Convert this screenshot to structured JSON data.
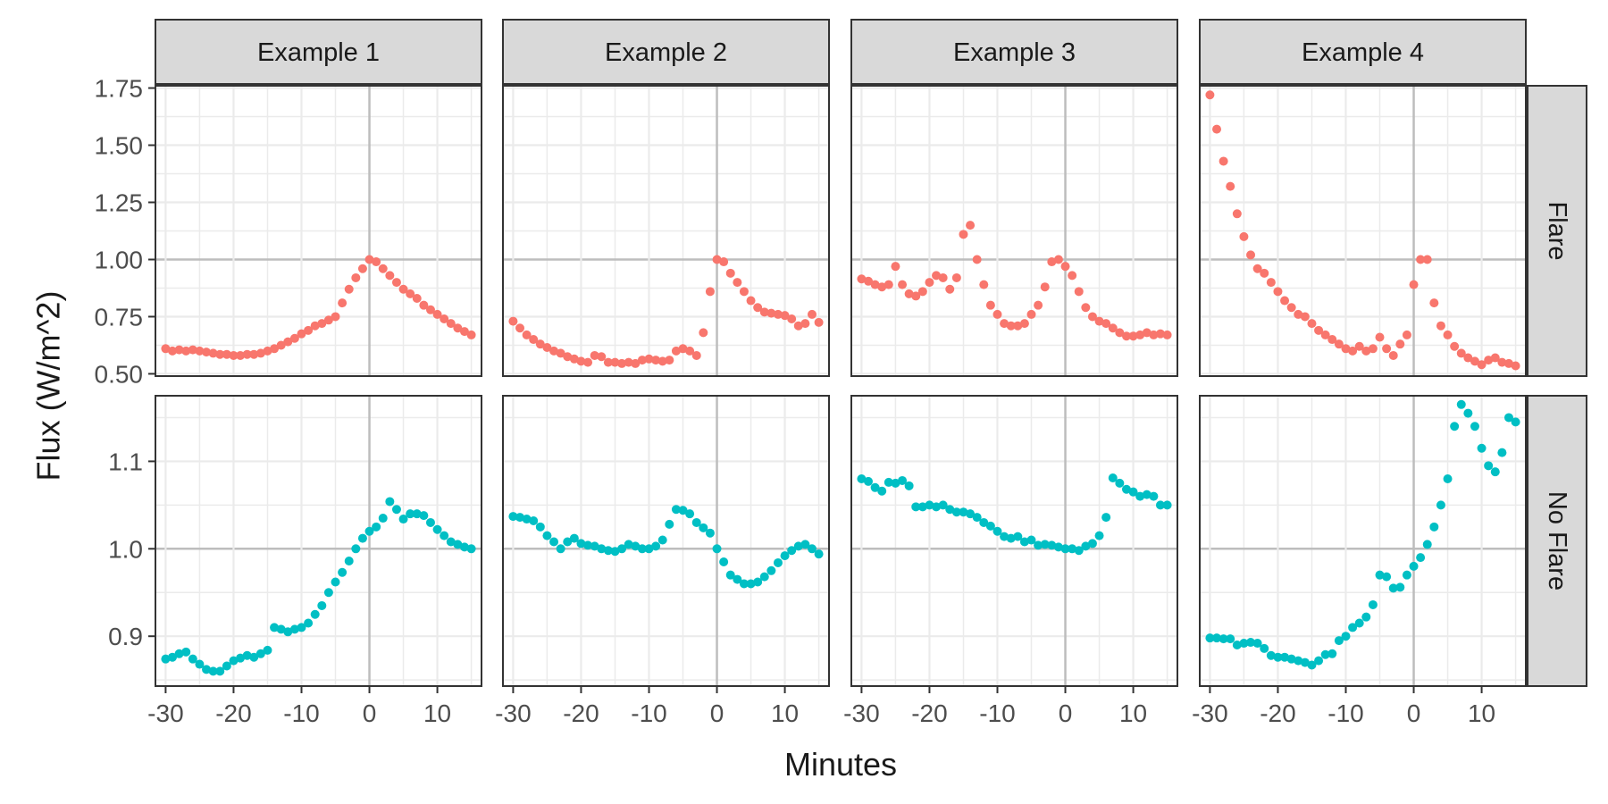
{
  "colors": {
    "flare": "#F8766D",
    "no_flare": "#00BFC4",
    "strip_bg": "#D9D9D9",
    "grid_major": "#BDBDBD",
    "grid_minor": "#EBEBEB"
  },
  "chart_data": {
    "type": "scatter",
    "facet_columns": [
      "Example 1",
      "Example 2",
      "Example 3",
      "Example 4"
    ],
    "facet_rows": [
      "Flare",
      "No Flare"
    ],
    "xlabel": "Minutes",
    "ylabel": "Flux (W/m^2)",
    "xlim": [
      -31.5,
      16.5
    ],
    "x_ticks": [
      -30,
      -20,
      -10,
      0,
      10
    ],
    "x_tick_labels": [
      "-30",
      "-20",
      "-10",
      "0",
      "10"
    ],
    "rows": [
      {
        "name": "Flare",
        "ylim": [
          0.49,
          1.76
        ],
        "y_ticks": [
          0.5,
          0.75,
          1.0,
          1.25,
          1.5,
          1.75
        ],
        "y_tick_labels": [
          "0.50",
          "0.75",
          "1.00",
          "1.25",
          "1.50",
          "1.75"
        ],
        "series": [
          {
            "name": "Example 1",
            "x": [
              -30,
              -29,
              -28,
              -27,
              -26,
              -25,
              -24,
              -23,
              -22,
              -21,
              -20,
              -19,
              -18,
              -17,
              -16,
              -15,
              -14,
              -13,
              -12,
              -11,
              -10,
              -9,
              -8,
              -7,
              -6,
              -5,
              -4,
              -3,
              -2,
              -1,
              0,
              1,
              2,
              3,
              4,
              5,
              6,
              7,
              8,
              9,
              10,
              11,
              12,
              13,
              14,
              15
            ],
            "y": [
              0.61,
              0.6,
              0.605,
              0.6,
              0.605,
              0.6,
              0.595,
              0.59,
              0.585,
              0.585,
              0.58,
              0.58,
              0.585,
              0.585,
              0.59,
              0.6,
              0.61,
              0.625,
              0.64,
              0.655,
              0.675,
              0.69,
              0.71,
              0.72,
              0.735,
              0.75,
              0.81,
              0.87,
              0.92,
              0.96,
              1.0,
              0.99,
              0.96,
              0.93,
              0.9,
              0.87,
              0.85,
              0.83,
              0.8,
              0.78,
              0.76,
              0.74,
              0.72,
              0.7,
              0.685,
              0.67
            ]
          },
          {
            "name": "Example 2",
            "x": [
              -30,
              -29,
              -28,
              -27,
              -26,
              -25,
              -24,
              -23,
              -22,
              -21,
              -20,
              -19,
              -18,
              -17,
              -16,
              -15,
              -14,
              -13,
              -12,
              -11,
              -10,
              -9,
              -8,
              -7,
              -6,
              -5,
              -4,
              -3,
              -2,
              -1,
              0,
              1,
              2,
              3,
              4,
              5,
              6,
              7,
              8,
              9,
              10,
              11,
              12,
              13,
              14,
              15
            ],
            "y": [
              0.73,
              0.7,
              0.67,
              0.65,
              0.63,
              0.615,
              0.6,
              0.59,
              0.575,
              0.565,
              0.555,
              0.55,
              0.58,
              0.575,
              0.55,
              0.55,
              0.545,
              0.55,
              0.545,
              0.56,
              0.565,
              0.56,
              0.555,
              0.56,
              0.6,
              0.61,
              0.6,
              0.58,
              0.68,
              0.86,
              1.0,
              0.99,
              0.94,
              0.9,
              0.86,
              0.82,
              0.79,
              0.77,
              0.765,
              0.76,
              0.755,
              0.74,
              0.71,
              0.72,
              0.76,
              0.725
            ]
          },
          {
            "name": "Example 3",
            "x": [
              -30,
              -29,
              -28,
              -27,
              -26,
              -25,
              -24,
              -23,
              -22,
              -21,
              -20,
              -19,
              -18,
              -17,
              -16,
              -15,
              -14,
              -13,
              -12,
              -11,
              -10,
              -9,
              -8,
              -7,
              -6,
              -5,
              -4,
              -3,
              -2,
              -1,
              0,
              1,
              2,
              3,
              4,
              5,
              6,
              7,
              8,
              9,
              10,
              11,
              12,
              13,
              14,
              15
            ],
            "y": [
              0.915,
              0.905,
              0.89,
              0.88,
              0.89,
              0.97,
              0.89,
              0.85,
              0.84,
              0.86,
              0.9,
              0.93,
              0.92,
              0.87,
              0.92,
              1.11,
              1.15,
              1.0,
              0.89,
              0.8,
              0.76,
              0.72,
              0.71,
              0.71,
              0.72,
              0.76,
              0.8,
              0.88,
              0.99,
              1.0,
              0.97,
              0.93,
              0.86,
              0.79,
              0.75,
              0.73,
              0.72,
              0.7,
              0.68,
              0.665,
              0.665,
              0.67,
              0.68,
              0.67,
              0.675,
              0.67
            ]
          },
          {
            "name": "Example 4",
            "x": [
              -30,
              -29,
              -28,
              -27,
              -26,
              -25,
              -24,
              -23,
              -22,
              -21,
              -20,
              -19,
              -18,
              -17,
              -16,
              -15,
              -14,
              -13,
              -12,
              -11,
              -10,
              -9,
              -8,
              -7,
              -6,
              -5,
              -4,
              -3,
              -2,
              -1,
              0,
              1,
              2,
              3,
              4,
              5,
              6,
              7,
              8,
              9,
              10,
              11,
              12,
              13,
              14,
              15
            ],
            "y": [
              1.72,
              1.57,
              1.43,
              1.32,
              1.2,
              1.1,
              1.02,
              0.96,
              0.94,
              0.9,
              0.86,
              0.82,
              0.79,
              0.76,
              0.75,
              0.72,
              0.69,
              0.67,
              0.65,
              0.63,
              0.61,
              0.6,
              0.62,
              0.6,
              0.61,
              0.66,
              0.61,
              0.58,
              0.63,
              0.67,
              0.89,
              1.0,
              1.0,
              0.81,
              0.71,
              0.67,
              0.62,
              0.59,
              0.57,
              0.555,
              0.54,
              0.56,
              0.57,
              0.55,
              0.545,
              0.535
            ]
          }
        ]
      },
      {
        "name": "No Flare",
        "ylim": [
          0.843,
          1.175
        ],
        "y_ticks": [
          0.9,
          1.0,
          1.1
        ],
        "y_tick_labels": [
          "0.9",
          "1.0",
          "1.1"
        ],
        "series": [
          {
            "name": "Example 1",
            "x": [
              -30,
              -29,
              -28,
              -27,
              -26,
              -25,
              -24,
              -23,
              -22,
              -21,
              -20,
              -19,
              -18,
              -17,
              -16,
              -15,
              -14,
              -13,
              -12,
              -11,
              -10,
              -9,
              -8,
              -7,
              -6,
              -5,
              -4,
              -3,
              -2,
              -1,
              0,
              1,
              2,
              3,
              4,
              5,
              6,
              7,
              8,
              9,
              10,
              11,
              12,
              13,
              14,
              15
            ],
            "y": [
              0.874,
              0.876,
              0.88,
              0.882,
              0.874,
              0.868,
              0.862,
              0.86,
              0.86,
              0.866,
              0.872,
              0.875,
              0.878,
              0.876,
              0.88,
              0.884,
              0.91,
              0.908,
              0.905,
              0.908,
              0.91,
              0.915,
              0.925,
              0.935,
              0.95,
              0.962,
              0.973,
              0.986,
              1.0,
              1.012,
              1.02,
              1.025,
              1.035,
              1.054,
              1.045,
              1.034,
              1.04,
              1.04,
              1.038,
              1.03,
              1.022,
              1.015,
              1.008,
              1.005,
              1.002,
              1.0
            ]
          },
          {
            "name": "Example 2",
            "x": [
              -30,
              -29,
              -28,
              -27,
              -26,
              -25,
              -24,
              -23,
              -22,
              -21,
              -20,
              -19,
              -18,
              -17,
              -16,
              -15,
              -14,
              -13,
              -12,
              -11,
              -10,
              -9,
              -8,
              -7,
              -6,
              -5,
              -4,
              -3,
              -2,
              -1,
              0,
              1,
              2,
              3,
              4,
              5,
              6,
              7,
              8,
              9,
              10,
              11,
              12,
              13,
              14,
              15
            ],
            "y": [
              1.037,
              1.036,
              1.034,
              1.032,
              1.025,
              1.015,
              1.008,
              1.0,
              1.008,
              1.012,
              1.006,
              1.004,
              1.003,
              1.0,
              0.998,
              0.997,
              1.0,
              1.005,
              1.003,
              1.0,
              1.0,
              1.003,
              1.01,
              1.028,
              1.045,
              1.044,
              1.04,
              1.03,
              1.024,
              1.018,
              1.0,
              0.985,
              0.97,
              0.965,
              0.96,
              0.96,
              0.962,
              0.968,
              0.975,
              0.984,
              0.992,
              0.998,
              1.003,
              1.005,
              1.0,
              0.994
            ]
          },
          {
            "name": "Example 3",
            "x": [
              -30,
              -29,
              -28,
              -27,
              -26,
              -25,
              -24,
              -23,
              -22,
              -21,
              -20,
              -19,
              -18,
              -17,
              -16,
              -15,
              -14,
              -13,
              -12,
              -11,
              -10,
              -9,
              -8,
              -7,
              -6,
              -5,
              -4,
              -3,
              -2,
              -1,
              0,
              1,
              2,
              3,
              4,
              5,
              6,
              7,
              8,
              9,
              10,
              11,
              12,
              13,
              14,
              15
            ],
            "y": [
              1.08,
              1.077,
              1.07,
              1.066,
              1.076,
              1.075,
              1.078,
              1.072,
              1.048,
              1.048,
              1.05,
              1.048,
              1.05,
              1.045,
              1.042,
              1.042,
              1.04,
              1.036,
              1.03,
              1.026,
              1.02,
              1.014,
              1.012,
              1.014,
              1.008,
              1.01,
              1.004,
              1.005,
              1.004,
              1.002,
              1.0,
              1.0,
              0.998,
              1.003,
              1.006,
              1.015,
              1.036,
              1.081,
              1.075,
              1.068,
              1.065,
              1.06,
              1.062,
              1.06,
              1.05,
              1.05
            ]
          },
          {
            "name": "Example 4",
            "x": [
              -30,
              -29,
              -28,
              -27,
              -26,
              -25,
              -24,
              -23,
              -22,
              -21,
              -20,
              -19,
              -18,
              -17,
              -16,
              -15,
              -14,
              -13,
              -12,
              -11,
              -10,
              -9,
              -8,
              -7,
              -6,
              -5,
              -4,
              -3,
              -2,
              -1,
              0,
              1,
              2,
              3,
              4,
              5,
              6,
              7,
              8,
              9,
              10,
              11,
              12,
              13,
              14,
              15
            ],
            "y": [
              0.898,
              0.898,
              0.897,
              0.897,
              0.89,
              0.892,
              0.893,
              0.892,
              0.886,
              0.878,
              0.876,
              0.876,
              0.874,
              0.872,
              0.87,
              0.867,
              0.872,
              0.879,
              0.88,
              0.895,
              0.9,
              0.91,
              0.915,
              0.922,
              0.936,
              0.97,
              0.968,
              0.955,
              0.956,
              0.97,
              0.98,
              0.99,
              1.005,
              1.025,
              1.05,
              1.08,
              1.14,
              1.165,
              1.155,
              1.14,
              1.115,
              1.095,
              1.088,
              1.11,
              1.15,
              1.145
            ]
          }
        ]
      }
    ]
  }
}
